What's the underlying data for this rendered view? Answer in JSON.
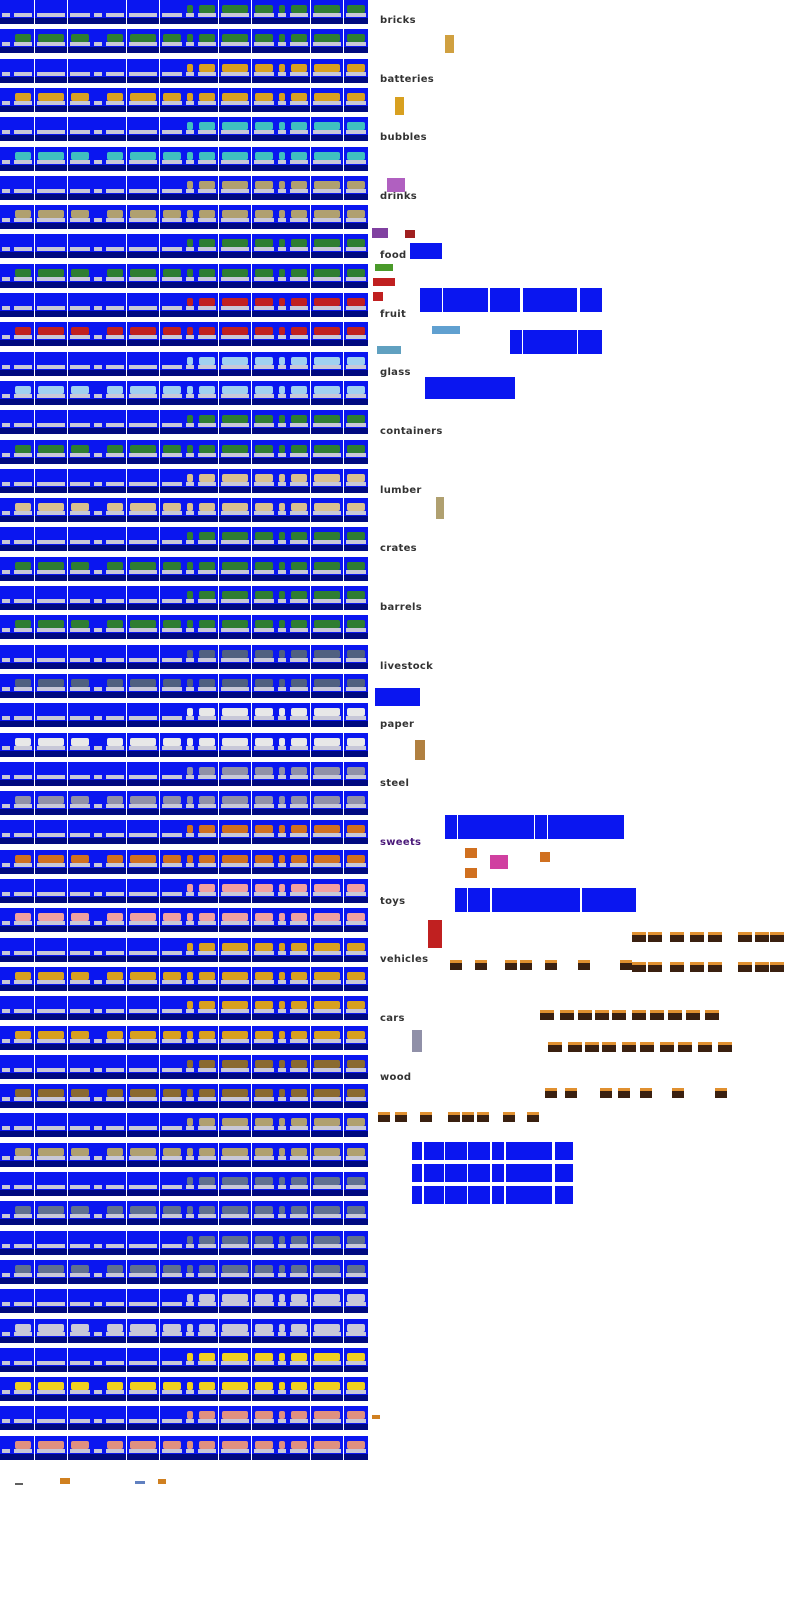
{
  "cargo_labels": [
    {
      "text": "bricks",
      "highlight": false
    },
    {
      "text": "batteries",
      "highlight": false
    },
    {
      "text": "bubbles",
      "highlight": false
    },
    {
      "text": "drinks",
      "highlight": false
    },
    {
      "text": "food",
      "highlight": false
    },
    {
      "text": "fruit",
      "highlight": false
    },
    {
      "text": "glass",
      "highlight": false
    },
    {
      "text": "containers",
      "highlight": false
    },
    {
      "text": "lumber",
      "highlight": false
    },
    {
      "text": "crates",
      "highlight": false
    },
    {
      "text": "barrels",
      "highlight": false
    },
    {
      "text": "livestock",
      "highlight": false
    },
    {
      "text": "paper",
      "highlight": false
    },
    {
      "text": "steel",
      "highlight": false
    },
    {
      "text": "sweets",
      "highlight": true
    },
    {
      "text": "toys",
      "highlight": false
    },
    {
      "text": "vehicles",
      "highlight": false
    },
    {
      "text": "cars",
      "highlight": false
    },
    {
      "text": "wood",
      "highlight": false
    }
  ],
  "sheet_rows": [
    {
      "cargo": "#2e7d32"
    },
    {
      "cargo": "#2e7d32"
    },
    {
      "cargo": "#d8a020"
    },
    {
      "cargo": "#d8a020"
    },
    {
      "cargo": "#40c0c0"
    },
    {
      "cargo": "#40c0c0"
    },
    {
      "cargo": "#b0a070"
    },
    {
      "cargo": "#b0a070"
    },
    {
      "cargo": "#2e7d32"
    },
    {
      "cargo": "#2e7d32"
    },
    {
      "cargo": "#c02020"
    },
    {
      "cargo": "#c02020"
    },
    {
      "cargo": "#a0d0f0"
    },
    {
      "cargo": "#a0d0f0"
    },
    {
      "cargo": "#2e7d32"
    },
    {
      "cargo": "#2e7d32"
    },
    {
      "cargo": "#d8c090"
    },
    {
      "cargo": "#d8c090"
    },
    {
      "cargo": "#2e7d32"
    },
    {
      "cargo": "#2e7d32"
    },
    {
      "cargo": "#2e7d32"
    },
    {
      "cargo": "#2e7d32"
    },
    {
      "cargo": "#506080"
    },
    {
      "cargo": "#506080"
    },
    {
      "cargo": "#e8e8e8"
    },
    {
      "cargo": "#e8e8e8"
    },
    {
      "cargo": "#9090a8"
    },
    {
      "cargo": "#9090a8"
    },
    {
      "cargo": "#d07020"
    },
    {
      "cargo": "#d07020"
    },
    {
      "cargo": "#f0a0a0"
    },
    {
      "cargo": "#f0a0a0"
    },
    {
      "cargo": "#d8a020"
    },
    {
      "cargo": "#d8a020"
    },
    {
      "cargo": "#d8a020"
    },
    {
      "cargo": "#d8a020"
    },
    {
      "cargo": "#8a6a30"
    },
    {
      "cargo": "#8a6a30"
    },
    {
      "cargo": "#b0a070"
    },
    {
      "cargo": "#b0a070"
    },
    {
      "cargo": "#607090"
    },
    {
      "cargo": "#607090"
    },
    {
      "cargo": "#607090"
    },
    {
      "cargo": "#607090"
    },
    {
      "cargo": "#c8c8d8"
    },
    {
      "cargo": "#c8c8d8"
    },
    {
      "cargo": "#f0d020"
    },
    {
      "cargo": "#f0d020"
    },
    {
      "cargo": "#e09080"
    },
    {
      "cargo": "#e09080"
    }
  ],
  "colors": {
    "tile_blue": "#0a16f0",
    "tile_dark": "#000a80",
    "label_text": "#333333",
    "label_highlight": "#4b1a7a",
    "wagon_body": "#3a2010",
    "wagon_top": "#e09030"
  }
}
